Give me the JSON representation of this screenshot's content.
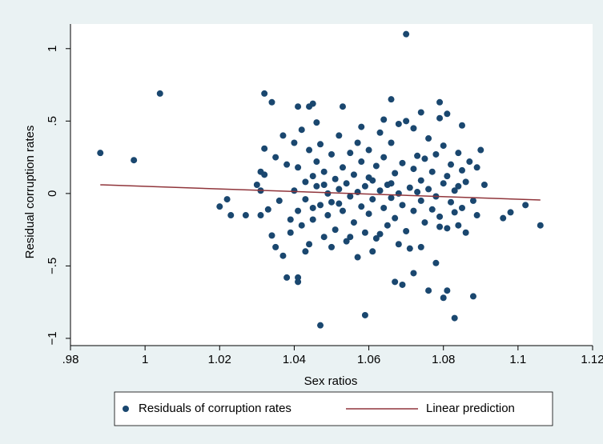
{
  "chart_data": {
    "type": "scatter",
    "x_label": "Sex ratios",
    "y_label": "Residual corruption rates",
    "xlim": [
      0.98,
      1.12
    ],
    "ylim": [
      -1.05,
      1.17
    ],
    "xticks": [
      {
        "value": 0.98,
        "label": ".98"
      },
      1,
      1.02,
      1.04,
      1.06,
      1.08,
      1.1,
      1.12
    ],
    "yticks": [
      {
        "value": -1,
        "label": "−1"
      },
      {
        "value": -0.5,
        "label": "−.5"
      },
      0,
      {
        "value": 0.5,
        "label": ".5"
      },
      1
    ],
    "legend": "bottom",
    "series": [
      {
        "name": "Residuals of corruption rates",
        "type": "scatter",
        "color": "#1a476f",
        "x": [
          0.988,
          0.997,
          1.004,
          1.02,
          1.022,
          1.023,
          1.027,
          1.031,
          1.031,
          1.032,
          1.034,
          1.032,
          1.041,
          1.044,
          1.045,
          1.053,
          1.066,
          1.07,
          1.074,
          1.079,
          1.085,
          1.038,
          1.041,
          1.041,
          1.047,
          1.059,
          1.067,
          1.069,
          1.072,
          1.076,
          1.08,
          1.081,
          1.083,
          1.088,
          1.096,
          1.098,
          1.102,
          1.106,
          1.09,
          1.091,
          1.057,
          1.061,
          1.035,
          1.037,
          1.078,
          1.03,
          1.032,
          1.033,
          1.035,
          1.036,
          1.037,
          1.038,
          1.039,
          1.04,
          1.04,
          1.041,
          1.041,
          1.042,
          1.042,
          1.043,
          1.043,
          1.044,
          1.044,
          1.045,
          1.045,
          1.046,
          1.046,
          1.047,
          1.047,
          1.048,
          1.048,
          1.049,
          1.049,
          1.05,
          1.05,
          1.051,
          1.051,
          1.052,
          1.052,
          1.053,
          1.053,
          1.054,
          1.054,
          1.055,
          1.055,
          1.056,
          1.056,
          1.057,
          1.057,
          1.058,
          1.058,
          1.059,
          1.059,
          1.06,
          1.06,
          1.061,
          1.061,
          1.062,
          1.062,
          1.063,
          1.063,
          1.064,
          1.064,
          1.065,
          1.065,
          1.066,
          1.066,
          1.067,
          1.067,
          1.068,
          1.068,
          1.069,
          1.069,
          1.07,
          1.07,
          1.071,
          1.071,
          1.072,
          1.072,
          1.073,
          1.073,
          1.074,
          1.074,
          1.075,
          1.075,
          1.076,
          1.076,
          1.077,
          1.077,
          1.078,
          1.078,
          1.079,
          1.079,
          1.08,
          1.08,
          1.081,
          1.081,
          1.082,
          1.082,
          1.083,
          1.083,
          1.084,
          1.084,
          1.085,
          1.085,
          1.086,
          1.086,
          1.087,
          1.088,
          1.089,
          1.089,
          1.034,
          1.039,
          1.043,
          1.05,
          1.055,
          1.063,
          1.068,
          1.074,
          1.079,
          1.084,
          1.031,
          1.046,
          1.058,
          1.064,
          1.072,
          1.081,
          1.052,
          1.06,
          1.066,
          1.048,
          1.045
        ],
        "values": [
          0.28,
          0.23,
          0.69,
          -0.09,
          -0.04,
          -0.15,
          -0.15,
          0.15,
          -0.15,
          0.69,
          0.63,
          0.31,
          0.6,
          0.6,
          0.62,
          0.6,
          0.65,
          1.1,
          0.56,
          0.63,
          0.47,
          -0.58,
          -0.58,
          -0.61,
          -0.91,
          -0.84,
          -0.61,
          -0.63,
          -0.55,
          -0.67,
          -0.72,
          -0.67,
          -0.86,
          -0.71,
          -0.17,
          -0.13,
          -0.08,
          -0.22,
          0.3,
          0.06,
          -0.44,
          -0.4,
          -0.37,
          -0.43,
          -0.48,
          0.06,
          0.13,
          -0.11,
          0.25,
          -0.05,
          0.4,
          0.2,
          -0.27,
          0.02,
          0.35,
          -0.12,
          0.18,
          0.44,
          -0.22,
          0.08,
          -0.04,
          0.3,
          -0.35,
          0.12,
          -0.18,
          0.05,
          0.22,
          -0.08,
          0.34,
          -0.3,
          0.15,
          0.0,
          -0.15,
          0.27,
          -0.06,
          0.1,
          -0.25,
          0.4,
          0.03,
          -0.12,
          0.18,
          -0.33,
          0.07,
          0.28,
          -0.02,
          -0.2,
          0.13,
          0.35,
          0.01,
          -0.09,
          0.22,
          -0.27,
          0.05,
          0.3,
          -0.14,
          0.09,
          -0.04,
          0.19,
          -0.31,
          0.02,
          0.42,
          -0.1,
          0.25,
          -0.22,
          0.06,
          0.35,
          -0.03,
          0.14,
          -0.17,
          0.48,
          0.0,
          -0.08,
          0.21,
          0.5,
          -0.26,
          0.04,
          -0.38,
          0.17,
          -0.12,
          0.26,
          0.01,
          -0.05,
          0.09,
          0.24,
          -0.2,
          0.03,
          0.38,
          -0.11,
          0.15,
          0.27,
          -0.02,
          0.52,
          -0.16,
          0.07,
          0.33,
          -0.24,
          0.12,
          -0.06,
          0.2,
          0.02,
          -0.13,
          0.28,
          0.05,
          -0.1,
          0.16,
          -0.27,
          0.08,
          0.22,
          -0.05,
          0.18,
          -0.15,
          -0.29,
          -0.18,
          -0.4,
          -0.37,
          -0.3,
          -0.28,
          -0.35,
          -0.37,
          -0.23,
          -0.22,
          0.02,
          0.49,
          0.46,
          0.51,
          0.45,
          0.55,
          -0.07,
          0.11,
          0.07,
          0.06,
          -0.1
        ]
      },
      {
        "name": "Linear prediction",
        "type": "line",
        "color": "#90353b",
        "x": [
          0.988,
          1.106
        ],
        "values": [
          0.06,
          -0.045
        ]
      }
    ]
  }
}
